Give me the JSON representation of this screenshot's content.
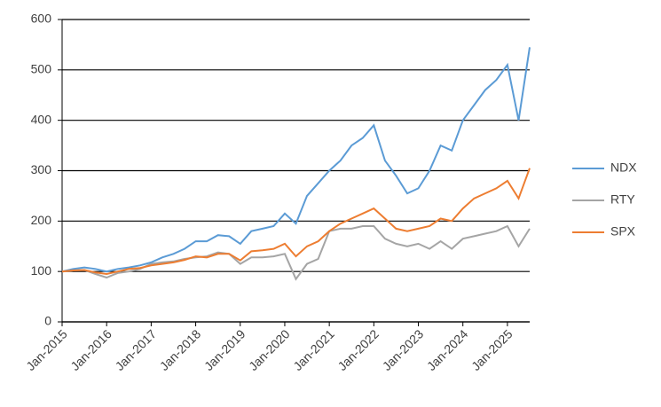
{
  "chart_data": {
    "type": "line",
    "x": [
      "2015-01",
      "2015-04",
      "2015-07",
      "2015-10",
      "2016-01",
      "2016-04",
      "2016-07",
      "2016-10",
      "2017-01",
      "2017-04",
      "2017-07",
      "2017-10",
      "2018-01",
      "2018-04",
      "2018-07",
      "2018-10",
      "2019-01",
      "2019-04",
      "2019-07",
      "2019-10",
      "2020-01",
      "2020-04",
      "2020-07",
      "2020-10",
      "2021-01",
      "2021-04",
      "2021-07",
      "2021-10",
      "2022-01",
      "2022-04",
      "2022-07",
      "2022-10",
      "2023-01",
      "2023-04",
      "2023-07",
      "2023-10",
      "2024-01",
      "2024-04",
      "2024-07",
      "2024-10",
      "2025-01",
      "2025-04",
      "2025-07"
    ],
    "series": [
      {
        "name": "NDX",
        "color": "#5b9bd5",
        "values": [
          100,
          105,
          108,
          105,
          100,
          105,
          108,
          112,
          118,
          128,
          135,
          145,
          160,
          160,
          172,
          170,
          155,
          180,
          185,
          190,
          215,
          195,
          250,
          275,
          300,
          320,
          350,
          365,
          390,
          320,
          290,
          255,
          265,
          300,
          350,
          340,
          400,
          430,
          460,
          480,
          510,
          400,
          545
        ]
      },
      {
        "name": "RTY",
        "color": "#a5a5a5",
        "values": [
          100,
          102,
          103,
          95,
          88,
          97,
          100,
          105,
          115,
          118,
          120,
          125,
          128,
          130,
          138,
          135,
          115,
          128,
          128,
          130,
          135,
          85,
          115,
          125,
          180,
          185,
          185,
          190,
          190,
          165,
          155,
          150,
          155,
          145,
          160,
          145,
          165,
          170,
          175,
          180,
          190,
          150,
          185
        ]
      },
      {
        "name": "SPX",
        "color": "#ed7d31",
        "values": [
          100,
          102,
          103,
          98,
          95,
          100,
          105,
          107,
          112,
          115,
          118,
          123,
          130,
          128,
          135,
          135,
          122,
          140,
          142,
          145,
          155,
          130,
          150,
          160,
          180,
          195,
          205,
          215,
          225,
          205,
          185,
          180,
          185,
          190,
          205,
          200,
          225,
          245,
          255,
          265,
          280,
          245,
          305
        ]
      }
    ],
    "xlim": [
      "2015-01",
      "2025-07"
    ],
    "xticks": [
      {
        "value": "2015-01",
        "label": "Jan-2015"
      },
      {
        "value": "2016-01",
        "label": "Jan-2016"
      },
      {
        "value": "2017-01",
        "label": "Jan-2017"
      },
      {
        "value": "2018-01",
        "label": "Jan-2018"
      },
      {
        "value": "2019-01",
        "label": "Jan-2019"
      },
      {
        "value": "2020-01",
        "label": "Jan-2020"
      },
      {
        "value": "2021-01",
        "label": "Jan-2021"
      },
      {
        "value": "2022-01",
        "label": "Jan-2022"
      },
      {
        "value": "2023-01",
        "label": "Jan-2023"
      },
      {
        "value": "2024-01",
        "label": "Jan-2024"
      },
      {
        "value": "2025-01",
        "label": "Jan-2025"
      }
    ],
    "ylim": [
      0,
      600
    ],
    "yticks": [
      0,
      100,
      200,
      300,
      400,
      500,
      600
    ],
    "grid": true,
    "legend": "right"
  }
}
